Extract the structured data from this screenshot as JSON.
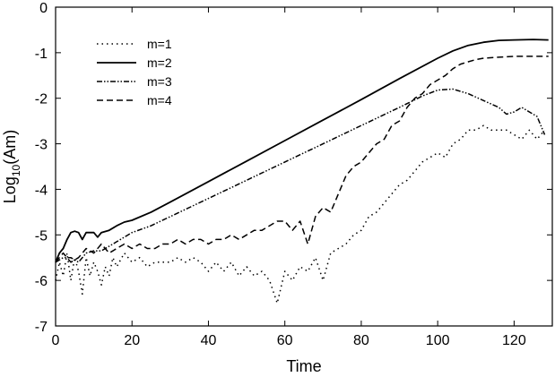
{
  "chart_data": {
    "type": "line",
    "xlabel": "Time",
    "ylabel": {
      "prefix": "Log",
      "subscript": "10",
      "suffix": "(Am)"
    },
    "xlim": [
      0,
      130
    ],
    "ylim": [
      -7,
      0
    ],
    "xticks": [
      0,
      20,
      40,
      60,
      80,
      100,
      120
    ],
    "yticks": [
      0,
      -1,
      -2,
      -3,
      -4,
      -5,
      -6,
      -7
    ],
    "grid": false,
    "legend_position": "top-left",
    "series": [
      {
        "name": "m=1",
        "style": "dotted",
        "points": [
          [
            0,
            -6.0
          ],
          [
            1,
            -5.6
          ],
          [
            2,
            -5.9
          ],
          [
            3,
            -5.4
          ],
          [
            4,
            -6.0
          ],
          [
            5,
            -5.5
          ],
          [
            6,
            -5.8
          ],
          [
            7,
            -6.3
          ],
          [
            8,
            -5.5
          ],
          [
            9,
            -5.9
          ],
          [
            10,
            -5.6
          ],
          [
            11,
            -5.8
          ],
          [
            12,
            -6.1
          ],
          [
            13,
            -5.7
          ],
          [
            14,
            -5.9
          ],
          [
            15,
            -5.5
          ],
          [
            16,
            -5.7
          ],
          [
            18,
            -5.4
          ],
          [
            20,
            -5.6
          ],
          [
            22,
            -5.5
          ],
          [
            24,
            -5.7
          ],
          [
            26,
            -5.6
          ],
          [
            28,
            -5.6
          ],
          [
            30,
            -5.6
          ],
          [
            32,
            -5.5
          ],
          [
            34,
            -5.6
          ],
          [
            36,
            -5.5
          ],
          [
            38,
            -5.6
          ],
          [
            40,
            -5.8
          ],
          [
            42,
            -5.6
          ],
          [
            44,
            -5.8
          ],
          [
            46,
            -5.6
          ],
          [
            48,
            -5.9
          ],
          [
            50,
            -5.7
          ],
          [
            52,
            -5.9
          ],
          [
            54,
            -5.8
          ],
          [
            56,
            -6.0
          ],
          [
            58,
            -6.5
          ],
          [
            60,
            -5.8
          ],
          [
            62,
            -6.0
          ],
          [
            64,
            -5.7
          ],
          [
            66,
            -5.8
          ],
          [
            68,
            -5.5
          ],
          [
            70,
            -6.0
          ],
          [
            72,
            -5.4
          ],
          [
            74,
            -5.3
          ],
          [
            76,
            -5.2
          ],
          [
            78,
            -5.0
          ],
          [
            80,
            -4.9
          ],
          [
            82,
            -4.6
          ],
          [
            84,
            -4.5
          ],
          [
            86,
            -4.3
          ],
          [
            88,
            -4.1
          ],
          [
            90,
            -3.9
          ],
          [
            92,
            -3.8
          ],
          [
            94,
            -3.6
          ],
          [
            96,
            -3.4
          ],
          [
            98,
            -3.3
          ],
          [
            100,
            -3.2
          ],
          [
            102,
            -3.3
          ],
          [
            104,
            -3.0
          ],
          [
            106,
            -2.9
          ],
          [
            108,
            -2.7
          ],
          [
            110,
            -2.7
          ],
          [
            112,
            -2.6
          ],
          [
            114,
            -2.7
          ],
          [
            116,
            -2.7
          ],
          [
            118,
            -2.7
          ],
          [
            120,
            -2.8
          ],
          [
            122,
            -2.9
          ],
          [
            124,
            -2.7
          ],
          [
            126,
            -2.9
          ],
          [
            128,
            -2.7
          ]
        ]
      },
      {
        "name": "m=2",
        "style": "solid",
        "points": [
          [
            0,
            -5.6
          ],
          [
            1,
            -5.4
          ],
          [
            2,
            -5.3
          ],
          [
            3,
            -5.1
          ],
          [
            4,
            -4.95
          ],
          [
            5,
            -4.92
          ],
          [
            6,
            -4.95
          ],
          [
            7,
            -5.1
          ],
          [
            8,
            -4.95
          ],
          [
            10,
            -4.95
          ],
          [
            11,
            -5.05
          ],
          [
            12,
            -4.95
          ],
          [
            14,
            -4.9
          ],
          [
            16,
            -4.8
          ],
          [
            18,
            -4.72
          ],
          [
            20,
            -4.68
          ],
          [
            25,
            -4.5
          ],
          [
            30,
            -4.28
          ],
          [
            40,
            -3.83
          ],
          [
            50,
            -3.38
          ],
          [
            60,
            -2.93
          ],
          [
            70,
            -2.48
          ],
          [
            80,
            -2.03
          ],
          [
            90,
            -1.57
          ],
          [
            100,
            -1.12
          ],
          [
            104,
            -0.96
          ],
          [
            108,
            -0.84
          ],
          [
            112,
            -0.77
          ],
          [
            116,
            -0.73
          ],
          [
            120,
            -0.72
          ],
          [
            125,
            -0.71
          ],
          [
            129,
            -0.72
          ]
        ]
      },
      {
        "name": "m=3",
        "style": "dash-dot-dot",
        "points": [
          [
            0,
            -5.6
          ],
          [
            2,
            -5.5
          ],
          [
            4,
            -5.5
          ],
          [
            6,
            -5.6
          ],
          [
            8,
            -5.4
          ],
          [
            10,
            -5.35
          ],
          [
            12,
            -5.35
          ],
          [
            14,
            -5.25
          ],
          [
            16,
            -5.15
          ],
          [
            18,
            -5.05
          ],
          [
            20,
            -4.95
          ],
          [
            25,
            -4.8
          ],
          [
            30,
            -4.6
          ],
          [
            40,
            -4.2
          ],
          [
            50,
            -3.8
          ],
          [
            60,
            -3.4
          ],
          [
            70,
            -3.0
          ],
          [
            80,
            -2.6
          ],
          [
            90,
            -2.2
          ],
          [
            96,
            -1.95
          ],
          [
            100,
            -1.82
          ],
          [
            104,
            -1.8
          ],
          [
            108,
            -1.9
          ],
          [
            112,
            -2.05
          ],
          [
            116,
            -2.2
          ],
          [
            118,
            -2.35
          ],
          [
            120,
            -2.3
          ],
          [
            122,
            -2.2
          ],
          [
            124,
            -2.3
          ],
          [
            126,
            -2.4
          ],
          [
            128,
            -2.8
          ]
        ]
      },
      {
        "name": "m=4",
        "style": "dashed",
        "points": [
          [
            0,
            -5.6
          ],
          [
            2,
            -5.4
          ],
          [
            4,
            -5.6
          ],
          [
            6,
            -5.5
          ],
          [
            8,
            -5.3
          ],
          [
            10,
            -5.4
          ],
          [
            12,
            -5.2
          ],
          [
            14,
            -5.4
          ],
          [
            16,
            -5.3
          ],
          [
            18,
            -5.2
          ],
          [
            20,
            -5.3
          ],
          [
            22,
            -5.2
          ],
          [
            24,
            -5.3
          ],
          [
            26,
            -5.3
          ],
          [
            28,
            -5.2
          ],
          [
            30,
            -5.2
          ],
          [
            32,
            -5.1
          ],
          [
            34,
            -5.2
          ],
          [
            36,
            -5.1
          ],
          [
            38,
            -5.1
          ],
          [
            40,
            -5.2
          ],
          [
            42,
            -5.1
          ],
          [
            44,
            -5.1
          ],
          [
            46,
            -5.0
          ],
          [
            48,
            -5.1
          ],
          [
            50,
            -5.0
          ],
          [
            52,
            -4.9
          ],
          [
            54,
            -4.9
          ],
          [
            56,
            -4.8
          ],
          [
            58,
            -4.7
          ],
          [
            60,
            -4.7
          ],
          [
            62,
            -4.9
          ],
          [
            64,
            -4.7
          ],
          [
            66,
            -5.2
          ],
          [
            68,
            -4.6
          ],
          [
            70,
            -4.4
          ],
          [
            72,
            -4.5
          ],
          [
            74,
            -4.1
          ],
          [
            76,
            -3.7
          ],
          [
            78,
            -3.5
          ],
          [
            80,
            -3.4
          ],
          [
            82,
            -3.2
          ],
          [
            84,
            -3.0
          ],
          [
            86,
            -2.9
          ],
          [
            88,
            -2.6
          ],
          [
            90,
            -2.5
          ],
          [
            92,
            -2.2
          ],
          [
            94,
            -2.0
          ],
          [
            96,
            -1.9
          ],
          [
            98,
            -1.7
          ],
          [
            100,
            -1.6
          ],
          [
            102,
            -1.5
          ],
          [
            104,
            -1.35
          ],
          [
            106,
            -1.25
          ],
          [
            108,
            -1.2
          ],
          [
            110,
            -1.15
          ],
          [
            112,
            -1.12
          ],
          [
            116,
            -1.1
          ],
          [
            120,
            -1.08
          ],
          [
            129,
            -1.08
          ]
        ]
      }
    ]
  }
}
